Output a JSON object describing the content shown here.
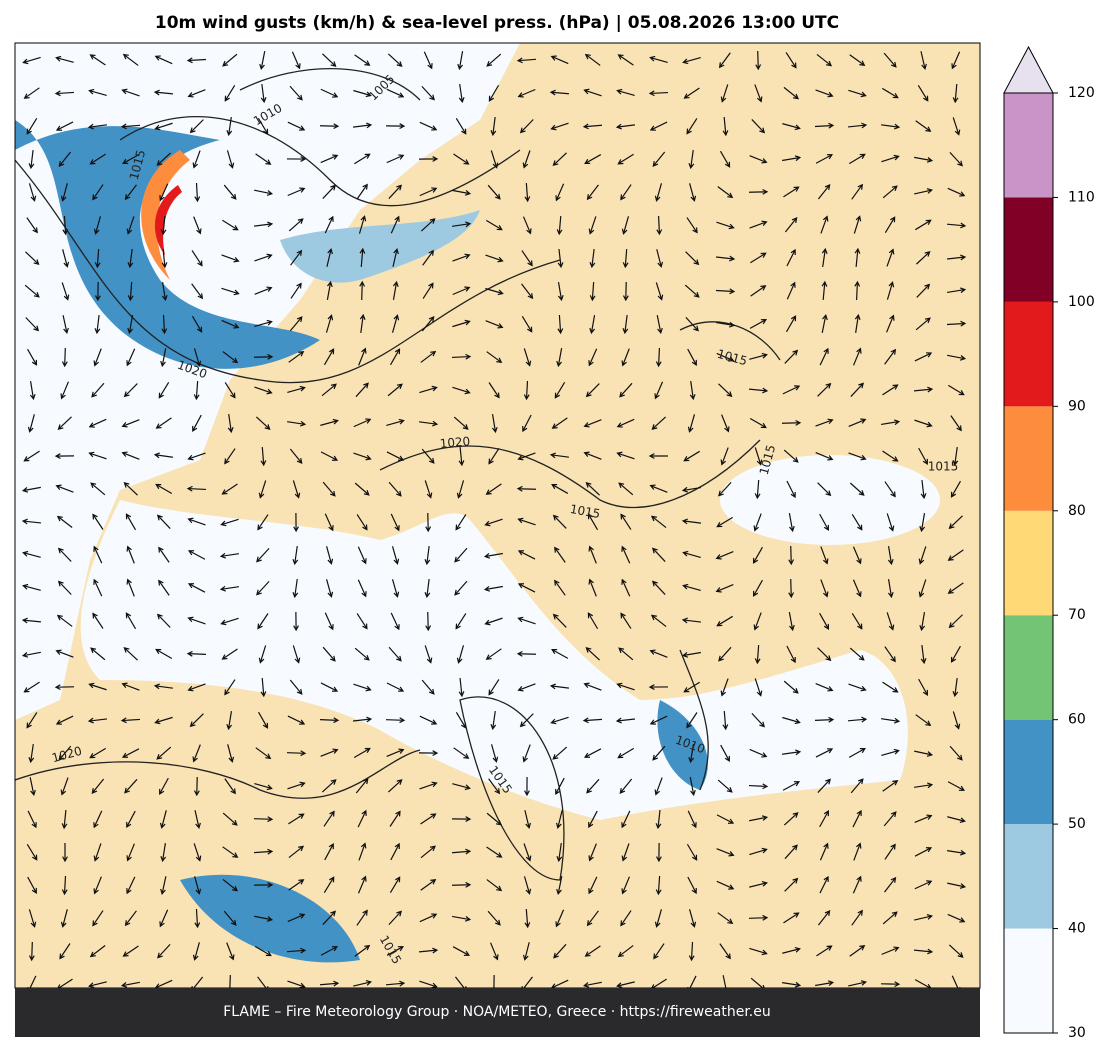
{
  "title": "10m wind gusts (km/h) & sea-level press. (hPa)  |  05.08.2026 13:00 UTC",
  "footer": "FLAME – Fire Meteorology Group · NOA/METEO, Greece · https://fireweather.eu",
  "isobar_labels": [
    "1015",
    "1010",
    "1005",
    "1020",
    "1020",
    "1015",
    "1015",
    "1015",
    "1015",
    "1010",
    "1015",
    "1020",
    "1015"
  ],
  "colorbar": {
    "levels": [
      30,
      40,
      50,
      60,
      70,
      80,
      90,
      100,
      110,
      120
    ],
    "colors": [
      "#f7fbff",
      "#9ecae1",
      "#4292c6",
      "#74c476",
      "#fed976",
      "#fd8d3c",
      "#e31a1c",
      "#800026",
      "#c994c7"
    ],
    "extend_color": "#e7e1ef"
  }
}
